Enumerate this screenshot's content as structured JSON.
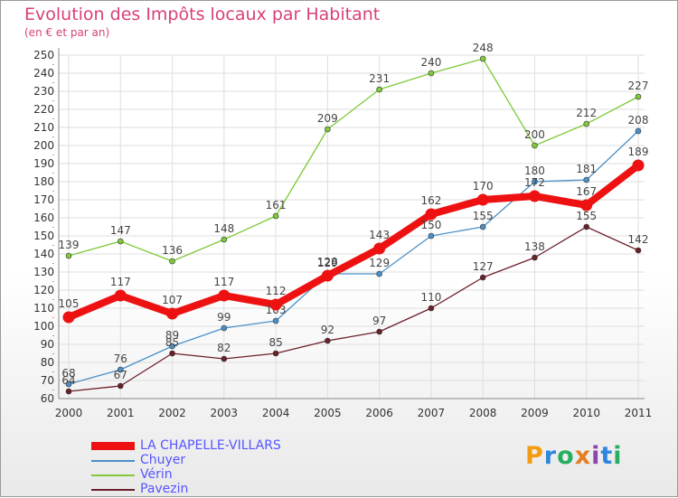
{
  "header": {
    "title": "Evolution des Impôts locaux par Habitant",
    "subtitle": "(en € et par an)"
  },
  "logo": {
    "text": "Proxiti",
    "colors": [
      "#f39c12",
      "#2e86de",
      "#27ae60",
      "#e67e22",
      "#8e44ad",
      "#2e86de",
      "#27ae60"
    ]
  },
  "chart_data": {
    "type": "line",
    "title": "Evolution des Impôts locaux par Habitant",
    "subtitle": "(en € et par an)",
    "xlabel": "",
    "ylabel": "",
    "x": [
      "2000",
      "2001",
      "2002",
      "2003",
      "2004",
      "2005",
      "2006",
      "2007",
      "2008",
      "2009",
      "2010",
      "2011"
    ],
    "ylim": [
      60,
      250
    ],
    "yticks": [
      60,
      70,
      80,
      90,
      100,
      110,
      120,
      130,
      140,
      150,
      160,
      170,
      180,
      190,
      200,
      210,
      220,
      230,
      240,
      250
    ],
    "grid": true,
    "legend_position": "bottom-left",
    "series": [
      {
        "name": "Vérin",
        "color": "#7fc93a",
        "values": [
          139,
          147,
          136,
          148,
          161,
          209,
          231,
          240,
          248,
          200,
          212,
          227
        ]
      },
      {
        "name": "Chuyer",
        "color": "#4a90c8",
        "values": [
          68,
          76,
          89,
          99,
          103,
          129,
          129,
          150,
          155,
          180,
          181,
          208
        ]
      },
      {
        "name": "Pavezin",
        "color": "#6b1f28",
        "values": [
          64,
          67,
          85,
          82,
          85,
          92,
          97,
          110,
          127,
          138,
          155,
          142
        ]
      },
      {
        "name": "LA CHAPELLE-VILLARS",
        "color": "#ee1111",
        "values": [
          105,
          117,
          107,
          117,
          112,
          128,
          143,
          162,
          170,
          172,
          167,
          189
        ]
      }
    ],
    "legend_order": [
      "LA CHAPELLE-VILLARS",
      "Chuyer",
      "Vérin",
      "Pavezin"
    ],
    "legend_label_color": "#5555ff"
  }
}
